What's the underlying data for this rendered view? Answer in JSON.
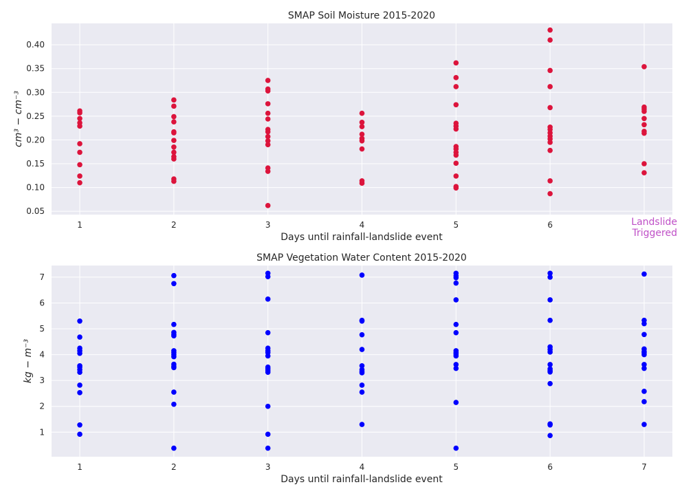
{
  "chart_data": [
    {
      "type": "scatter",
      "title": "SMAP Soil Moisture 2015-2020",
      "xlabel": "Days until rainfall-landslide event",
      "ylabel": "cm³ − cm⁻³",
      "xlim": [
        0.7,
        7.3
      ],
      "ylim": [
        0.043,
        0.445
      ],
      "xticks": [
        "1",
        "2",
        "3",
        "4",
        "5",
        "6",
        ""
      ],
      "xtick_values": [
        1,
        2,
        3,
        4,
        5,
        6,
        7
      ],
      "yticks": [
        "0.05",
        "0.10",
        "0.15",
        "0.20",
        "0.25",
        "0.30",
        "0.35",
        "0.40"
      ],
      "ytick_values": [
        0.05,
        0.1,
        0.15,
        0.2,
        0.25,
        0.3,
        0.35,
        0.4
      ],
      "grid": true,
      "marker_color": "#dc143c",
      "background": "#eaeaf2",
      "annotation": {
        "lines": [
          "Landslide",
          "Triggered"
        ],
        "color": "#bf4fc7"
      },
      "points": [
        [
          1,
          0.261
        ],
        [
          1,
          0.257
        ],
        [
          1,
          0.245
        ],
        [
          1,
          0.236
        ],
        [
          1,
          0.229
        ],
        [
          1,
          0.192
        ],
        [
          1,
          0.174
        ],
        [
          1,
          0.148
        ],
        [
          1,
          0.124
        ],
        [
          1,
          0.11
        ],
        [
          2,
          0.284
        ],
        [
          2,
          0.271
        ],
        [
          2,
          0.249
        ],
        [
          2,
          0.238
        ],
        [
          2,
          0.217
        ],
        [
          2,
          0.215
        ],
        [
          2,
          0.199
        ],
        [
          2,
          0.185
        ],
        [
          2,
          0.174
        ],
        [
          2,
          0.165
        ],
        [
          2,
          0.16
        ],
        [
          2,
          0.118
        ],
        [
          2,
          0.113
        ],
        [
          3,
          0.325
        ],
        [
          3,
          0.307
        ],
        [
          3,
          0.303
        ],
        [
          3,
          0.276
        ],
        [
          3,
          0.256
        ],
        [
          3,
          0.244
        ],
        [
          3,
          0.222
        ],
        [
          3,
          0.217
        ],
        [
          3,
          0.207
        ],
        [
          3,
          0.198
        ],
        [
          3,
          0.19
        ],
        [
          3,
          0.141
        ],
        [
          3,
          0.134
        ],
        [
          3,
          0.062
        ],
        [
          4,
          0.256
        ],
        [
          4,
          0.237
        ],
        [
          4,
          0.228
        ],
        [
          4,
          0.212
        ],
        [
          4,
          0.203
        ],
        [
          4,
          0.198
        ],
        [
          4,
          0.181
        ],
        [
          4,
          0.114
        ],
        [
          4,
          0.109
        ],
        [
          5,
          0.362
        ],
        [
          5,
          0.331
        ],
        [
          5,
          0.312
        ],
        [
          5,
          0.274
        ],
        [
          5,
          0.235
        ],
        [
          5,
          0.229
        ],
        [
          5,
          0.223
        ],
        [
          5,
          0.186
        ],
        [
          5,
          0.181
        ],
        [
          5,
          0.174
        ],
        [
          5,
          0.168
        ],
        [
          5,
          0.151
        ],
        [
          5,
          0.124
        ],
        [
          5,
          0.102
        ],
        [
          5,
          0.099
        ],
        [
          6,
          0.431
        ],
        [
          6,
          0.41
        ],
        [
          6,
          0.346
        ],
        [
          6,
          0.312
        ],
        [
          6,
          0.268
        ],
        [
          6,
          0.227
        ],
        [
          6,
          0.222
        ],
        [
          6,
          0.215
        ],
        [
          6,
          0.208
        ],
        [
          6,
          0.202
        ],
        [
          6,
          0.195
        ],
        [
          6,
          0.178
        ],
        [
          6,
          0.114
        ],
        [
          6,
          0.087
        ],
        [
          7,
          0.354
        ],
        [
          7,
          0.269
        ],
        [
          7,
          0.265
        ],
        [
          7,
          0.26
        ],
        [
          7,
          0.245
        ],
        [
          7,
          0.232
        ],
        [
          7,
          0.218
        ],
        [
          7,
          0.214
        ],
        [
          7,
          0.15
        ],
        [
          7,
          0.131
        ]
      ]
    },
    {
      "type": "scatter",
      "title": "SMAP Vegetation Water Content 2015-2020",
      "xlabel": "Days until rainfall-landslide event",
      "ylabel": "kg − m⁻³",
      "xlim": [
        0.7,
        7.3
      ],
      "ylim": [
        0.05,
        7.45
      ],
      "xticks": [
        "1",
        "2",
        "3",
        "4",
        "5",
        "6",
        "7"
      ],
      "xtick_values": [
        1,
        2,
        3,
        4,
        5,
        6,
        7
      ],
      "yticks": [
        "1",
        "2",
        "3",
        "4",
        "5",
        "6",
        "7"
      ],
      "ytick_values": [
        1,
        2,
        3,
        4,
        5,
        6,
        7
      ],
      "grid": true,
      "marker_color": "#0000ff",
      "background": "#eaeaf2",
      "points": [
        [
          1,
          5.3
        ],
        [
          1,
          4.68
        ],
        [
          1,
          4.25
        ],
        [
          1,
          4.15
        ],
        [
          1,
          4.05
        ],
        [
          1,
          3.57
        ],
        [
          1,
          3.52
        ],
        [
          1,
          3.42
        ],
        [
          1,
          3.32
        ],
        [
          1,
          2.82
        ],
        [
          1,
          2.53
        ],
        [
          1,
          1.28
        ],
        [
          1,
          0.92
        ],
        [
          2,
          7.06
        ],
        [
          2,
          6.75
        ],
        [
          2,
          5.17
        ],
        [
          2,
          4.86
        ],
        [
          2,
          4.78
        ],
        [
          2,
          4.73
        ],
        [
          2,
          4.15
        ],
        [
          2,
          4.08
        ],
        [
          2,
          4.0
        ],
        [
          2,
          3.92
        ],
        [
          2,
          3.63
        ],
        [
          2,
          3.55
        ],
        [
          2,
          3.5
        ],
        [
          2,
          2.55
        ],
        [
          2,
          2.08
        ],
        [
          2,
          0.38
        ],
        [
          3,
          7.15
        ],
        [
          3,
          7.02
        ],
        [
          3,
          6.15
        ],
        [
          3,
          4.85
        ],
        [
          3,
          4.25
        ],
        [
          3,
          4.15
        ],
        [
          3,
          4.08
        ],
        [
          3,
          3.95
        ],
        [
          3,
          3.52
        ],
        [
          3,
          3.45
        ],
        [
          3,
          3.38
        ],
        [
          3,
          3.32
        ],
        [
          3,
          2.0
        ],
        [
          3,
          0.92
        ],
        [
          3,
          0.38
        ],
        [
          4,
          7.08
        ],
        [
          4,
          5.33
        ],
        [
          4,
          5.3
        ],
        [
          4,
          4.77
        ],
        [
          4,
          4.2
        ],
        [
          4,
          3.57
        ],
        [
          4,
          3.42
        ],
        [
          4,
          3.35
        ],
        [
          4,
          3.3
        ],
        [
          4,
          2.82
        ],
        [
          4,
          2.55
        ],
        [
          4,
          1.3
        ],
        [
          5,
          7.15
        ],
        [
          5,
          7.05
        ],
        [
          5,
          6.98
        ],
        [
          5,
          6.77
        ],
        [
          5,
          6.12
        ],
        [
          5,
          5.17
        ],
        [
          5,
          4.85
        ],
        [
          5,
          4.15
        ],
        [
          5,
          4.08
        ],
        [
          5,
          4.02
        ],
        [
          5,
          3.95
        ],
        [
          5,
          3.62
        ],
        [
          5,
          3.47
        ],
        [
          5,
          2.15
        ],
        [
          5,
          0.38
        ],
        [
          6,
          7.15
        ],
        [
          6,
          7.0
        ],
        [
          6,
          6.12
        ],
        [
          6,
          5.33
        ],
        [
          6,
          4.3
        ],
        [
          6,
          4.2
        ],
        [
          6,
          4.1
        ],
        [
          6,
          3.62
        ],
        [
          6,
          3.45
        ],
        [
          6,
          3.38
        ],
        [
          6,
          3.33
        ],
        [
          6,
          2.88
        ],
        [
          6,
          1.32
        ],
        [
          6,
          1.28
        ],
        [
          6,
          0.87
        ],
        [
          7,
          7.12
        ],
        [
          7,
          5.33
        ],
        [
          7,
          5.2
        ],
        [
          7,
          4.78
        ],
        [
          7,
          4.22
        ],
        [
          7,
          4.12
        ],
        [
          7,
          4.07
        ],
        [
          7,
          4.0
        ],
        [
          7,
          3.62
        ],
        [
          7,
          3.47
        ],
        [
          7,
          2.58
        ],
        [
          7,
          2.18
        ],
        [
          7,
          1.3
        ]
      ]
    }
  ]
}
